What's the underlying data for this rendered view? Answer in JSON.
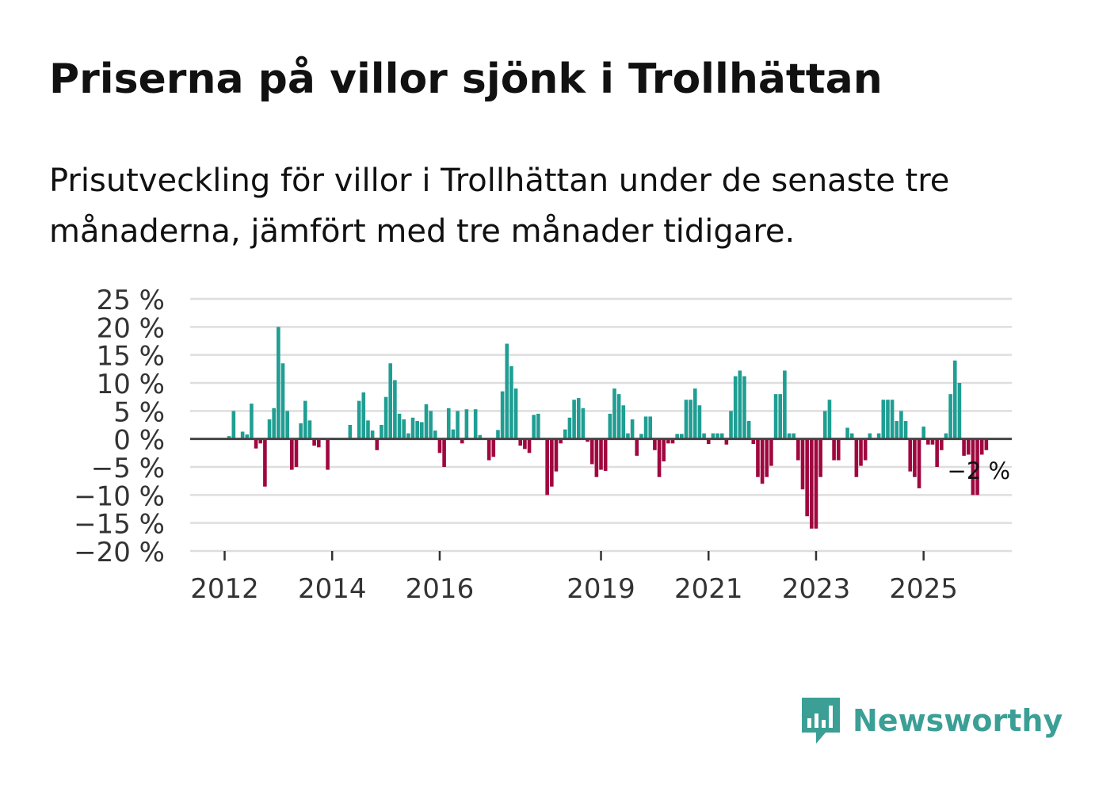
{
  "title": "Priserna på villor sjönk i Trollhättan",
  "subtitle": "Prisutveckling för villor i Trollhättan under de senaste tre månaderna, jämfört med tre månader tidigare.",
  "brand": {
    "name": "Newsworthy",
    "icon": "newsworthy-logo-icon",
    "color": "#3b9f96"
  },
  "chart_data": {
    "type": "bar",
    "title": "Priserna på villor sjönk i Trollhättan",
    "xlabel": "",
    "ylabel": "",
    "ylim": [
      -20,
      25
    ],
    "y_ticks": [
      25,
      20,
      15,
      10,
      5,
      0,
      -5,
      -10,
      -15,
      -20
    ],
    "y_tick_labels": [
      "25 %",
      "20 %",
      "15 %",
      "10 %",
      "5 %",
      "0 %",
      "−5 %",
      "−10 %",
      "−15 %",
      "−20 %"
    ],
    "x_tick_labels": [
      {
        "label": "2012",
        "index": 0
      },
      {
        "label": "2014",
        "index": 24
      },
      {
        "label": "2016",
        "index": 48
      },
      {
        "label": "2019",
        "index": 84
      },
      {
        "label": "2021",
        "index": 108
      },
      {
        "label": "2023",
        "index": 132
      },
      {
        "label": "2025",
        "index": 156
      }
    ],
    "positive_color": "#1f9e93",
    "negative_color": "#a0073f",
    "gridlines": true,
    "annotation": {
      "text": "−2 %",
      "index": 168
    },
    "start": "2012-01",
    "values": [
      0,
      0.5,
      5,
      0,
      1.3,
      0.8,
      6.3,
      -1.7,
      -0.8,
      -8.5,
      3.5,
      5.5,
      20,
      13.5,
      5,
      -5.5,
      -5,
      2.8,
      6.8,
      3.3,
      -1.2,
      -1.5,
      0,
      -5.5,
      0,
      0,
      0,
      0,
      2.5,
      0,
      6.8,
      8.3,
      3.3,
      1.5,
      -2,
      2.5,
      7.5,
      13.5,
      10.5,
      4.5,
      3.5,
      1,
      3.8,
      3.2,
      3,
      6.2,
      5,
      1.5,
      -2.5,
      -5,
      5.5,
      1.7,
      5,
      -0.8,
      5.3,
      0,
      5.3,
      0.7,
      0,
      -3.8,
      -3.2,
      1.6,
      8.5,
      17,
      13,
      9,
      -1.2,
      -1.8,
      -2.5,
      4.3,
      4.5,
      0,
      -10,
      -8.5,
      -5.8,
      -0.8,
      1.7,
      3.8,
      7,
      7.3,
      5.5,
      -0.5,
      -4.5,
      -6.8,
      -5.5,
      -5.7,
      4.5,
      9,
      8,
      6,
      1,
      3.5,
      -3,
      0.9,
      4,
      4,
      -2,
      -6.8,
      -4,
      -0.8,
      -0.8,
      0.9,
      0.9,
      7,
      7,
      9,
      6,
      1,
      -0.9,
      1,
      1,
      1,
      -1,
      5,
      11.2,
      12.2,
      11.2,
      3.2,
      -0.9,
      -6.8,
      -8,
      -6.8,
      -4.8,
      8,
      8,
      12.2,
      1,
      1,
      -3.8,
      -9,
      -13.8,
      -16,
      -16,
      -6.8,
      5,
      7,
      -3.8,
      -3.8,
      0,
      2,
      1,
      -6.8,
      -4.8,
      -3.8,
      1,
      0,
      1,
      7,
      7,
      7,
      3.2,
      5,
      3.2,
      -5.8,
      -6.8,
      -8.8,
      2.2,
      -1,
      -1,
      -5,
      -2,
      1,
      8,
      14,
      10,
      -3,
      -2.8,
      -10,
      -10,
      -2.8,
      -2
    ]
  }
}
